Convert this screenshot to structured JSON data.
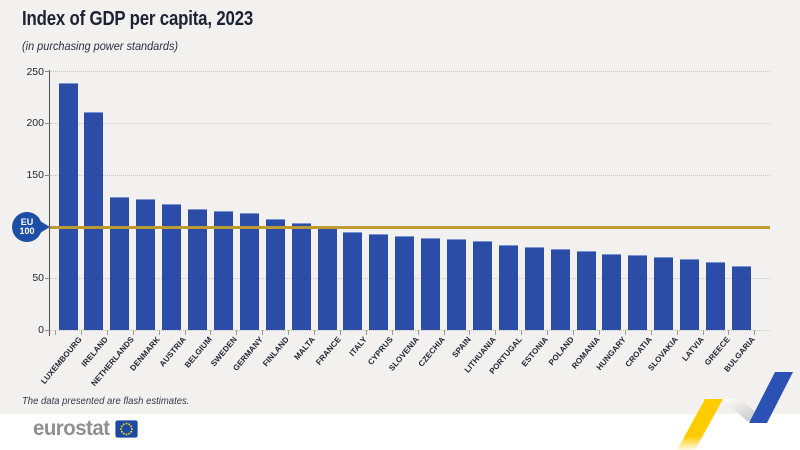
{
  "header": {
    "title": "Index of GDP per capita, 2023",
    "subtitle": "(in purchasing power standards)"
  },
  "chart_data": {
    "type": "bar",
    "title": "Index of GDP per capita, 2023",
    "subtitle": "(in purchasing power standards)",
    "categories": [
      "LUXEMBOURG",
      "IRELAND",
      "NETHERLANDS",
      "DENMARK",
      "AUSTRIA",
      "BELGIUM",
      "SWEDEN",
      "GERMANY",
      "FINLAND",
      "MALTA",
      "FRANCE",
      "ITALY",
      "CYPRUS",
      "SLOVENIA",
      "CZECHIA",
      "SPAIN",
      "LITHUANIA",
      "PORTUGAL",
      "ESTONIA",
      "POLAND",
      "ROMANIA",
      "HUNGARY",
      "CROATIA",
      "SLOVAKIA",
      "LATVIA",
      "GREECE",
      "BULGARIA"
    ],
    "values": [
      239,
      211,
      129,
      127,
      122,
      117,
      115,
      113,
      107,
      104,
      99,
      95,
      93,
      91,
      89,
      88,
      86,
      82,
      80,
      78,
      76,
      74,
      73,
      71,
      69,
      66,
      62
    ],
    "xlabel": "",
    "ylabel": "",
    "ylim": [
      0,
      250
    ],
    "yticks": [
      0,
      50,
      100,
      150,
      200,
      250
    ],
    "grid": "horizontal-dotted",
    "legend": "none",
    "bar_color": "#2B4DA7",
    "reference_line": {
      "value": 100,
      "color": "#BD9B31",
      "label_line1": "EU",
      "label_line2": "100"
    }
  },
  "footnote": "The data presented are flash estimates.",
  "footer": {
    "logo_text": "eurostat"
  },
  "colors": {
    "chart_background": "#F2F1EF",
    "footer_background": "#FFFFFF",
    "bar_blue": "#2B4DA7",
    "reference_gold": "#BD9B31",
    "badge_blue": "#1C4FA5",
    "title_navy": "#1C2233",
    "logo_gray": "#8F8F8F",
    "flag_blue": "#1B4AA2",
    "star_yellow": "#FFD617",
    "accent_yellow": "#FFCC00",
    "accent_blue": "#2B51B4"
  }
}
